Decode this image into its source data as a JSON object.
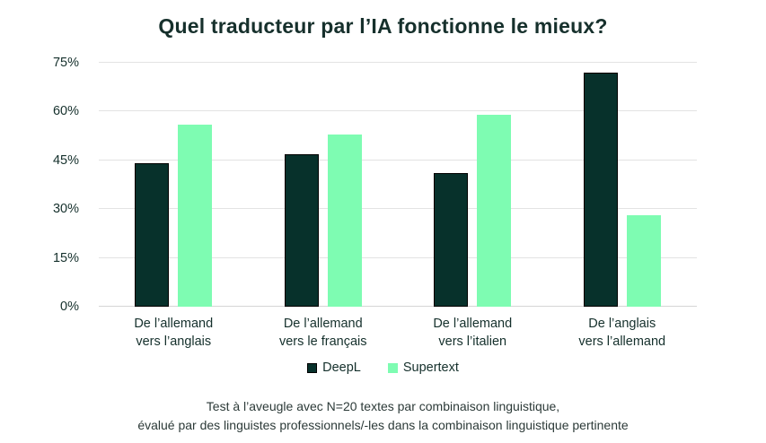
{
  "title": "Quel traducteur par l’IA fonctionne le mieux?",
  "footnote": {
    "line1": "Test à l’aveugle avec N=20 textes par combinaison linguistique,",
    "line2": "évalué par des linguistes professionnels/-les dans la combinaison linguistique pertinente"
  },
  "colors": {
    "deepl_bar": "#07312b",
    "deepl_border": "#000000",
    "supertext_bar": "#7efcb2",
    "gridline": "#e3e3e3",
    "axis_text": "#15302c",
    "background": "#ffffff"
  },
  "chart_data": {
    "type": "bar",
    "title": "Quel traducteur par l’IA fonctionne le mieux?",
    "categories": [
      "De l’allemand\nvers l’anglais",
      "De l’allemand\nvers le français",
      "De l’allemand\nvers l’italien",
      "De l’anglais\nvers l’allemand"
    ],
    "series": [
      {
        "name": "DeepL",
        "color": "#07312b",
        "border_color": "#000000",
        "values": [
          44,
          47,
          41,
          72
        ]
      },
      {
        "name": "Supertext",
        "color": "#7efcb2",
        "values": [
          56,
          53,
          59,
          28
        ]
      }
    ],
    "xlabel": "",
    "ylabel": "",
    "y_ticks": [
      0,
      15,
      30,
      45,
      60,
      75
    ],
    "y_tick_suffix": "%",
    "ylim": [
      0,
      75
    ],
    "grid": true,
    "legend_position": "bottom"
  }
}
